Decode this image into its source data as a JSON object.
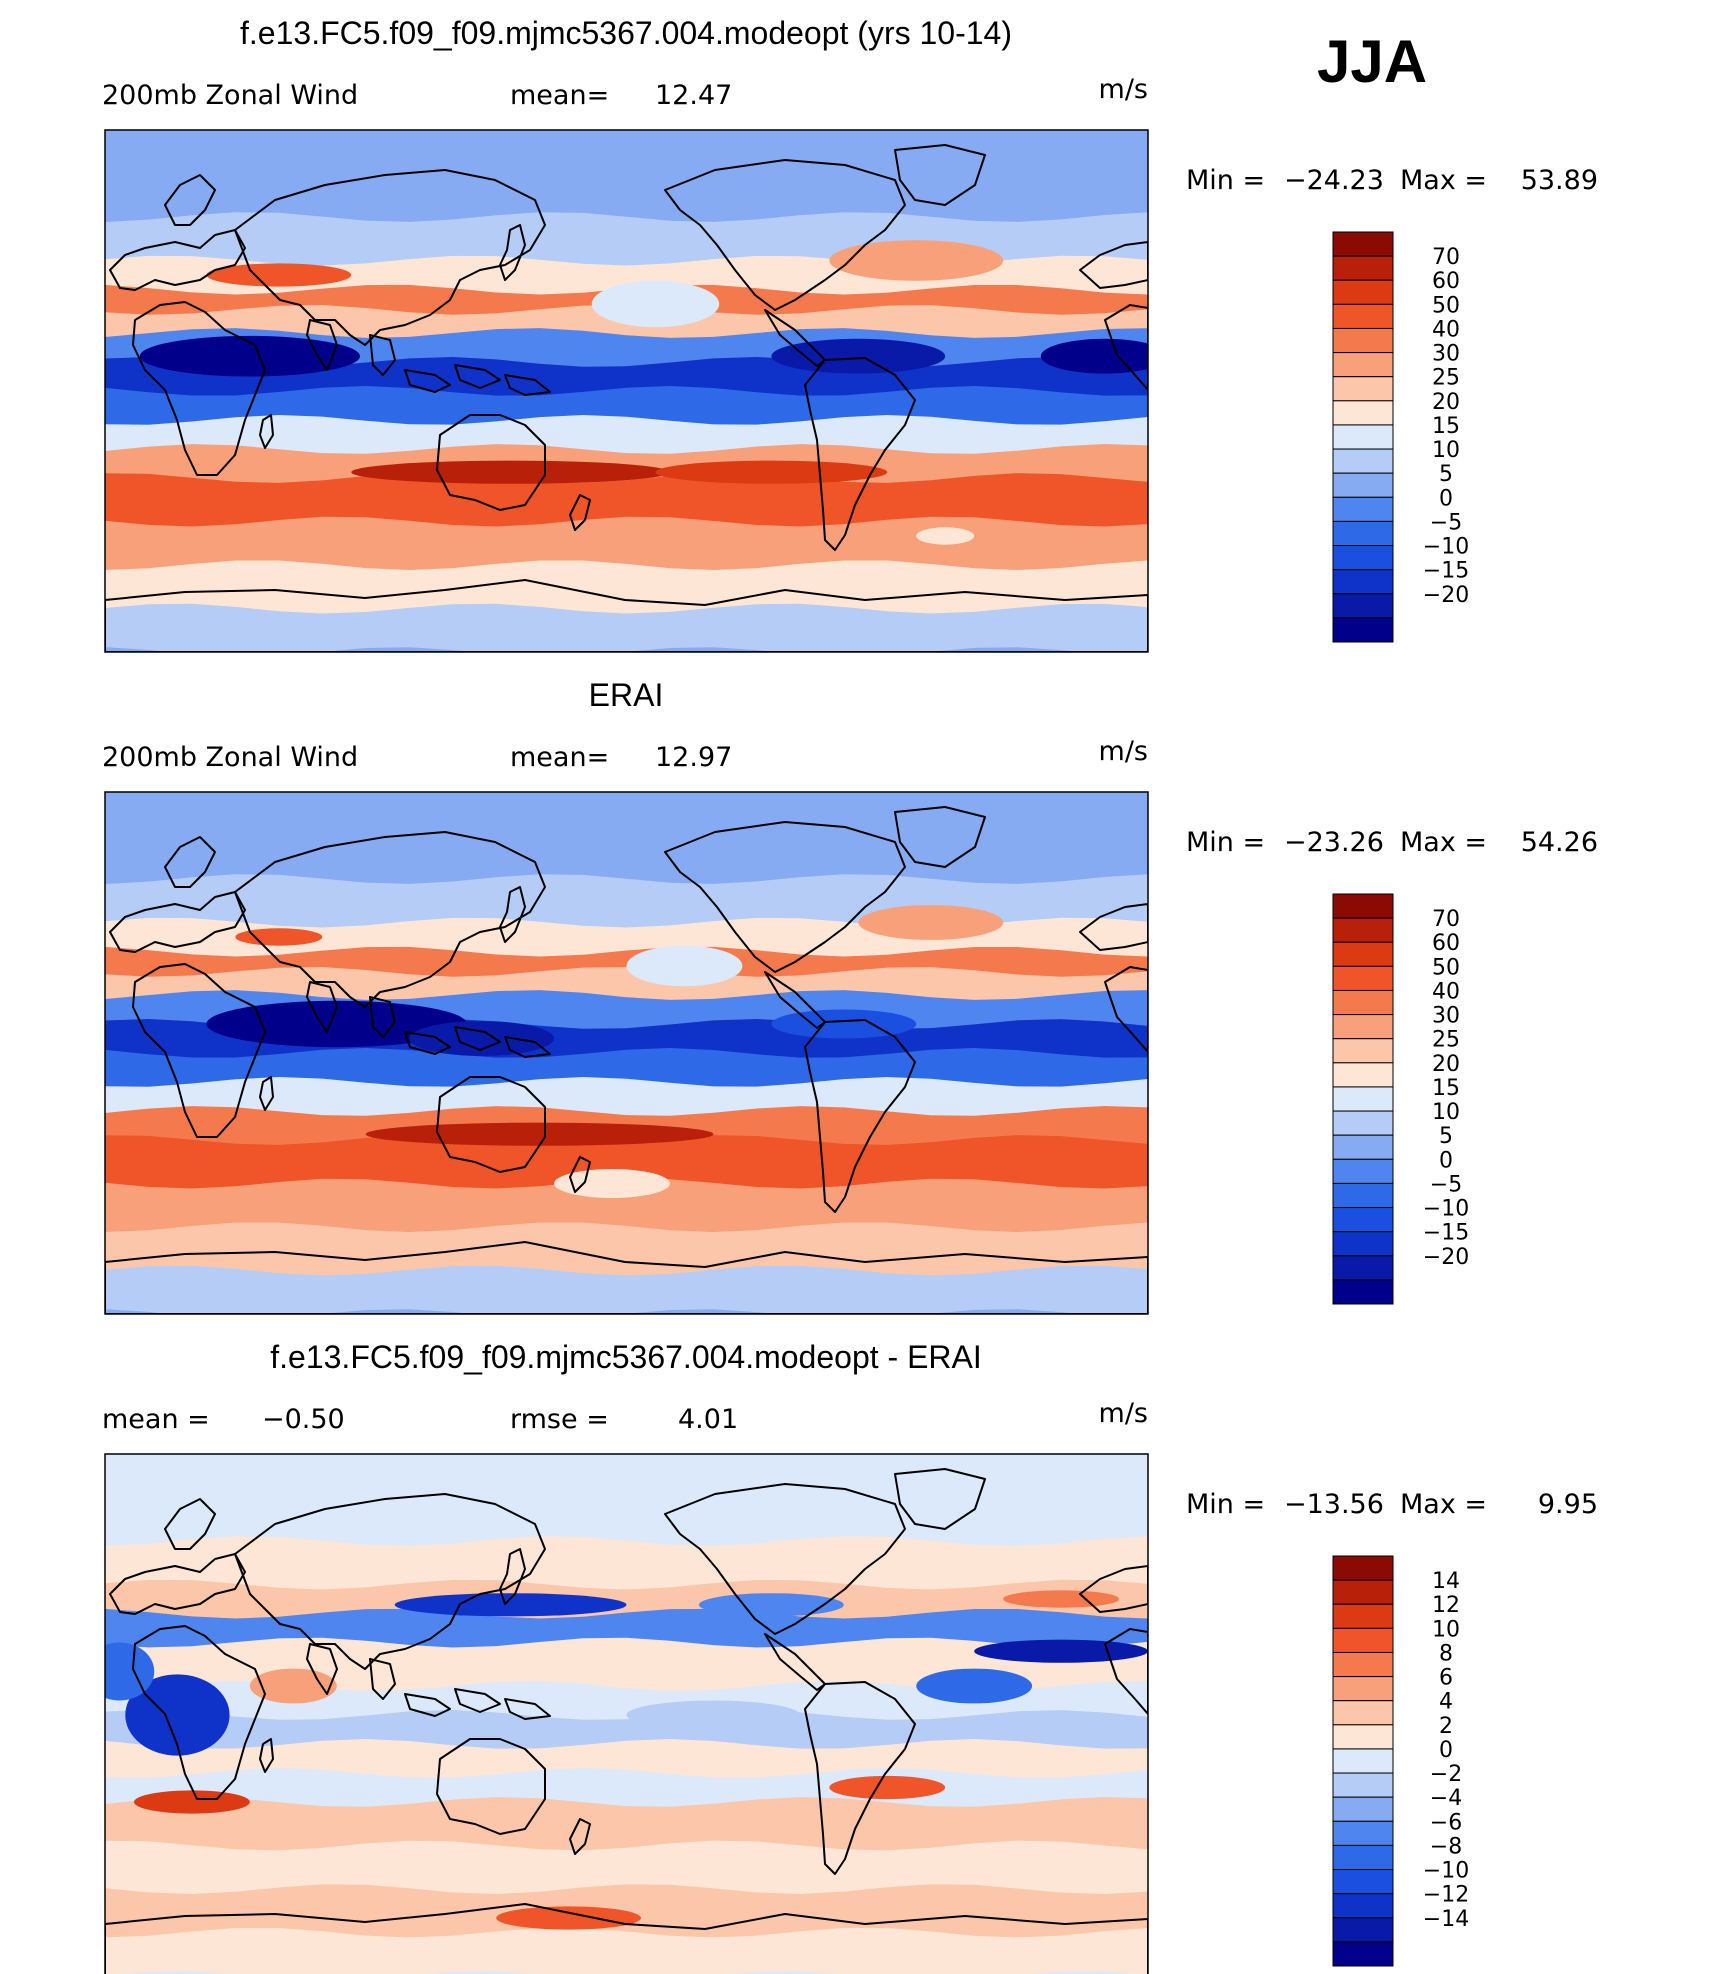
{
  "figure": {
    "season": "JJA"
  },
  "palettes": {
    "full": [
      "#00008b",
      "#0a1aa8",
      "#0f32c8",
      "#1a4fe0",
      "#2e6ae8",
      "#4f85ee",
      "#86abf2",
      "#b4ccf6",
      "#dce9fa",
      "#fde6d6",
      "#fbc6aa",
      "#f8a07a",
      "#f47a4d",
      "#ef5528",
      "#dc3a12",
      "#b8200a",
      "#8b0b04"
    ],
    "diff": [
      "#00008b",
      "#0a1aa8",
      "#0f32c8",
      "#1a4fe0",
      "#2e6ae8",
      "#4f85ee",
      "#86abf2",
      "#b4ccf6",
      "#dce9fa",
      "#fde6d6",
      "#fbc6aa",
      "#f8a07a",
      "#f47a4d",
      "#ef5528",
      "#dc3a12",
      "#b8200a",
      "#8b0b04"
    ]
  },
  "panels": [
    {
      "title": "f.e13.FC5.f09_f09.mjmc5367.004.modeopt (yrs 10-14)",
      "left_label": "200mb Zonal Wind",
      "mid_label": "mean=",
      "mid_value": "12.47",
      "units": "m/s",
      "min_label": "Min =",
      "min_value": "−24.23",
      "max_label": "Max =",
      "max_value": "53.89",
      "palette": "full",
      "ticks": [
        "70",
        "60",
        "50",
        "40",
        "30",
        "25",
        "20",
        "15",
        "10",
        "5",
        "0",
        "−5",
        "−10",
        "−15",
        "−20"
      ],
      "bands": [
        {
          "lat": 80,
          "c": 6
        },
        {
          "lat": 60,
          "c": 7
        },
        {
          "lat": 45,
          "c": 9
        },
        {
          "lat": 35,
          "c": 12
        },
        {
          "lat": 28,
          "c": 10
        },
        {
          "lat": 20,
          "c": 5
        },
        {
          "lat": 10,
          "c": 2
        },
        {
          "lat": 0,
          "c": 4
        },
        {
          "lat": -10,
          "c": 8
        },
        {
          "lat": -20,
          "c": 11
        },
        {
          "lat": -30,
          "c": 13
        },
        {
          "lat": -45,
          "c": 11
        },
        {
          "lat": -60,
          "c": 9
        },
        {
          "lat": -75,
          "c": 7
        },
        {
          "lat": -90,
          "c": 6
        }
      ],
      "blobs": [
        {
          "lon": 50,
          "lat": 12,
          "rx": 38,
          "ry": 7,
          "c": 0
        },
        {
          "lon": 260,
          "lat": 12,
          "rx": 30,
          "ry": 6,
          "c": 1
        },
        {
          "lon": 345,
          "lat": 12,
          "rx": 22,
          "ry": 6,
          "c": 0
        },
        {
          "lon": 140,
          "lat": -28,
          "rx": 55,
          "ry": 4,
          "c": 15
        },
        {
          "lon": 230,
          "lat": -28,
          "rx": 40,
          "ry": 4,
          "c": 14
        },
        {
          "lon": 190,
          "lat": 30,
          "rx": 22,
          "ry": 8,
          "c": 8
        },
        {
          "lon": 280,
          "lat": 45,
          "rx": 30,
          "ry": 7,
          "c": 11
        },
        {
          "lon": 60,
          "lat": 40,
          "rx": 25,
          "ry": 4,
          "c": 13
        },
        {
          "lon": 290,
          "lat": -50,
          "rx": 10,
          "ry": 3,
          "c": 9
        }
      ]
    },
    {
      "title": "ERAI",
      "left_label": "200mb Zonal Wind",
      "mid_label": "mean=",
      "mid_value": "12.97",
      "units": "m/s",
      "min_label": "Min =",
      "min_value": "−23.26",
      "max_label": "Max =",
      "max_value": "54.26",
      "palette": "full",
      "ticks": [
        "70",
        "60",
        "50",
        "40",
        "30",
        "25",
        "20",
        "15",
        "10",
        "5",
        "0",
        "−5",
        "−10",
        "−15",
        "−20"
      ],
      "bands": [
        {
          "lat": 80,
          "c": 6
        },
        {
          "lat": 60,
          "c": 7
        },
        {
          "lat": 45,
          "c": 9
        },
        {
          "lat": 35,
          "c": 12
        },
        {
          "lat": 28,
          "c": 10
        },
        {
          "lat": 20,
          "c": 5
        },
        {
          "lat": 10,
          "c": 2
        },
        {
          "lat": 0,
          "c": 4
        },
        {
          "lat": -10,
          "c": 8
        },
        {
          "lat": -20,
          "c": 12
        },
        {
          "lat": -30,
          "c": 13
        },
        {
          "lat": -45,
          "c": 11
        },
        {
          "lat": -60,
          "c": 10
        },
        {
          "lat": -75,
          "c": 7
        },
        {
          "lat": -90,
          "c": 6
        }
      ],
      "blobs": [
        {
          "lon": 80,
          "lat": 10,
          "rx": 45,
          "ry": 8,
          "c": 0
        },
        {
          "lon": 130,
          "lat": 5,
          "rx": 25,
          "ry": 6,
          "c": 1
        },
        {
          "lon": 255,
          "lat": 10,
          "rx": 25,
          "ry": 5,
          "c": 3
        },
        {
          "lon": 150,
          "lat": -28,
          "rx": 60,
          "ry": 4,
          "c": 15
        },
        {
          "lon": 200,
          "lat": 30,
          "rx": 20,
          "ry": 7,
          "c": 8
        },
        {
          "lon": 285,
          "lat": 45,
          "rx": 25,
          "ry": 6,
          "c": 11
        },
        {
          "lon": 60,
          "lat": 40,
          "rx": 15,
          "ry": 3,
          "c": 13
        },
        {
          "lon": 175,
          "lat": -45,
          "rx": 20,
          "ry": 5,
          "c": 9
        }
      ]
    },
    {
      "title": "f.e13.FC5.f09_f09.mjmc5367.004.modeopt - ERAI",
      "left_label": "mean =",
      "left_value": "−0.50",
      "mid_label": "rmse =",
      "mid_value": "4.01",
      "units": "m/s",
      "min_label": "Min =",
      "min_value": "−13.56",
      "max_label": "Max =",
      "max_value": "9.95",
      "palette": "diff",
      "ticks": [
        "14",
        "12",
        "10",
        "8",
        "6",
        "4",
        "2",
        "0",
        "−2",
        "−4",
        "−6",
        "−8",
        "−10",
        "−12",
        "−14"
      ],
      "bands": [
        {
          "lat": 80,
          "c": 8
        },
        {
          "lat": 60,
          "c": 9
        },
        {
          "lat": 45,
          "c": 10
        },
        {
          "lat": 35,
          "c": 5
        },
        {
          "lat": 25,
          "c": 9
        },
        {
          "lat": 10,
          "c": 8
        },
        {
          "lat": 0,
          "c": 7
        },
        {
          "lat": -10,
          "c": 9
        },
        {
          "lat": -20,
          "c": 8
        },
        {
          "lat": -30,
          "c": 10
        },
        {
          "lat": -45,
          "c": 9
        },
        {
          "lat": -60,
          "c": 10
        },
        {
          "lat": -75,
          "c": 9
        },
        {
          "lat": -90,
          "c": 8
        }
      ],
      "blobs": [
        {
          "lon": 25,
          "lat": 0,
          "rx": 18,
          "ry": 14,
          "c": 2
        },
        {
          "lon": 5,
          "lat": 15,
          "rx": 12,
          "ry": 10,
          "c": 4
        },
        {
          "lon": 140,
          "lat": 38,
          "rx": 40,
          "ry": 4,
          "c": 2
        },
        {
          "lon": 230,
          "lat": 38,
          "rx": 25,
          "ry": 4,
          "c": 5
        },
        {
          "lon": 330,
          "lat": 22,
          "rx": 30,
          "ry": 4,
          "c": 1
        },
        {
          "lon": 300,
          "lat": 10,
          "rx": 20,
          "ry": 6,
          "c": 4
        },
        {
          "lon": 330,
          "lat": 40,
          "rx": 20,
          "ry": 3,
          "c": 12
        },
        {
          "lon": 30,
          "lat": -30,
          "rx": 20,
          "ry": 4,
          "c": 14
        },
        {
          "lon": 270,
          "lat": -25,
          "rx": 20,
          "ry": 4,
          "c": 13
        },
        {
          "lon": 65,
          "lat": 10,
          "rx": 15,
          "ry": 6,
          "c": 11
        },
        {
          "lon": 160,
          "lat": -70,
          "rx": 25,
          "ry": 4,
          "c": 13
        },
        {
          "lon": 210,
          "lat": 0,
          "rx": 30,
          "ry": 5,
          "c": 7
        }
      ]
    }
  ]
}
